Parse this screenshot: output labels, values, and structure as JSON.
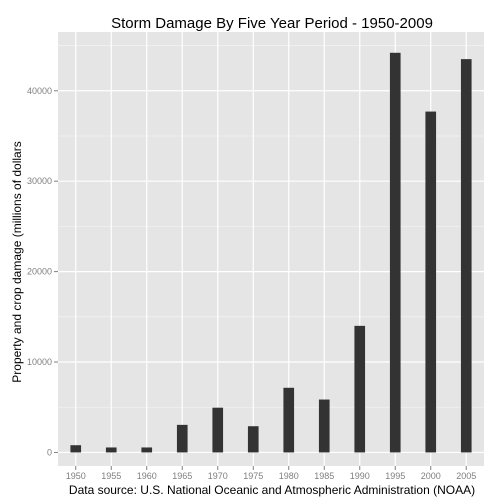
{
  "chart_data": {
    "type": "bar",
    "title": "Storm Damage By Five Year Period - 1950-2009",
    "xlabel": "Data source: U.S. National Oceanic and Atmospheric Administration (NOAA)",
    "ylabel": "Property and crop damage (millions of dollars",
    "categories": [
      "1950",
      "1955",
      "1960",
      "1965",
      "1970",
      "1975",
      "1980",
      "1985",
      "1990",
      "1995",
      "2000",
      "2005"
    ],
    "values": [
      800,
      550,
      550,
      3050,
      4950,
      2900,
      7150,
      5850,
      14000,
      44200,
      37700,
      43500
    ],
    "y_ticks": [
      0,
      10000,
      20000,
      30000,
      40000
    ],
    "y_tick_labels": [
      "0",
      "10000",
      "20000",
      "30000",
      "40000"
    ],
    "ylim": [
      -1500,
      46500
    ],
    "grid": true,
    "colors": {
      "panel": "#e5e5e5",
      "grid_major": "#ffffff",
      "grid_minor": "#f2f2f2",
      "bar": "#333333"
    }
  }
}
